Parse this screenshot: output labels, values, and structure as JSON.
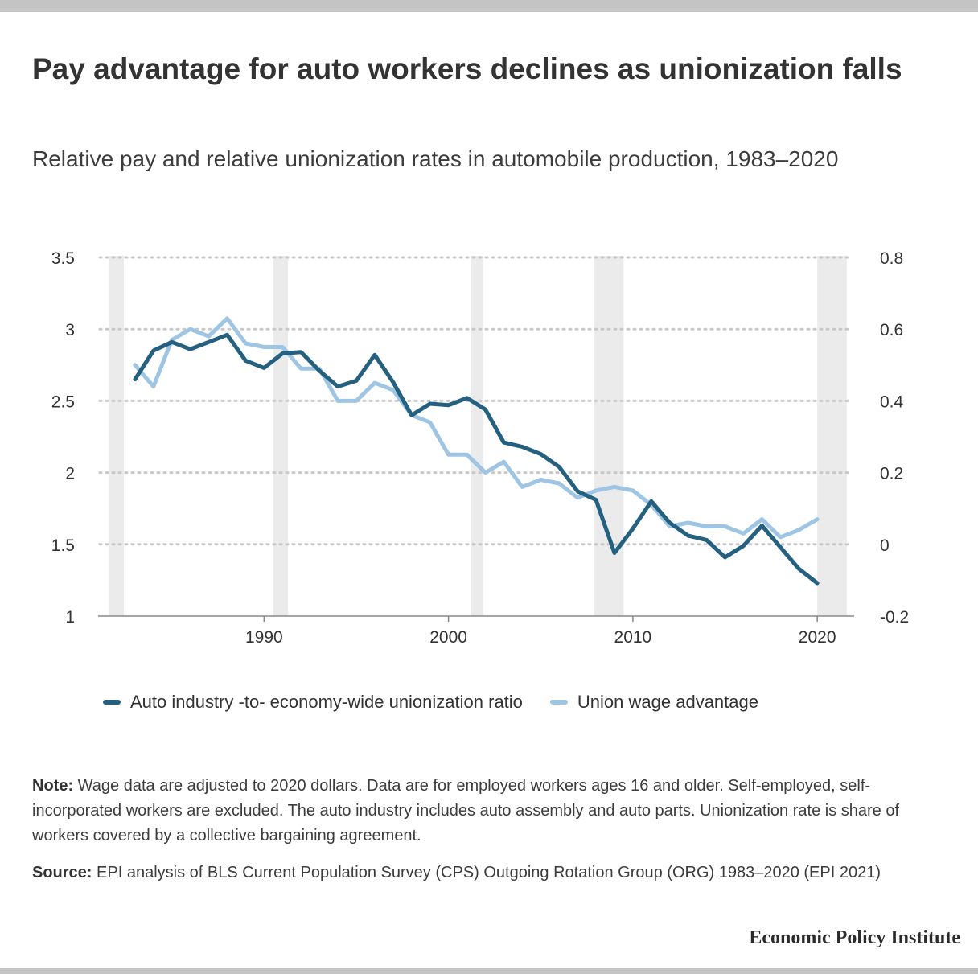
{
  "title": "Pay advantage for auto workers declines as unionization falls",
  "subtitle": "Relative pay and relative unionization rates in automobile production, 1983–2020",
  "note_label": "Note:",
  "note_text": "Wage data are adjusted to 2020 dollars. Data are for employed workers ages 16 and older. Self-employed, self-incorporated workers are excluded. The auto industry includes auto assembly and auto parts. Unionization rate is share of workers covered by a collective bargaining agreement.",
  "source_label": "Source:",
  "source_text": "EPI analysis of BLS Current Population Survey (CPS) Outgoing Rotation Group (ORG) 1983–2020 (EPI 2021)",
  "brand": "Economic Policy Institute",
  "chart_data": {
    "type": "line",
    "x": [
      1983,
      1984,
      1985,
      1986,
      1987,
      1988,
      1989,
      1990,
      1991,
      1992,
      1993,
      1994,
      1995,
      1996,
      1997,
      1998,
      1999,
      2000,
      2001,
      2002,
      2003,
      2004,
      2005,
      2006,
      2007,
      2008,
      2009,
      2010,
      2011,
      2012,
      2013,
      2014,
      2015,
      2016,
      2017,
      2018,
      2019,
      2020
    ],
    "xticks": [
      1990,
      2000,
      2010,
      2020
    ],
    "xlim": [
      1981,
      2022
    ],
    "y_left": {
      "lim": [
        1,
        3.5
      ],
      "ticks": [
        "1",
        "1.5",
        "2",
        "2.5",
        "3",
        "3.5"
      ]
    },
    "y_right": {
      "lim": [
        -0.2,
        0.8
      ],
      "ticks": [
        "-0.2",
        "0",
        "0.2",
        "0.4",
        "0.6",
        "0.8"
      ]
    },
    "grid": true,
    "recessions": [
      [
        1981.6,
        1982.4
      ],
      [
        1990.5,
        1991.3
      ],
      [
        2001.2,
        2001.9
      ],
      [
        2007.9,
        2009.5
      ],
      [
        2020.0,
        2021.6
      ]
    ],
    "series": [
      {
        "name": "Auto industry -to- economy-wide unionization ratio",
        "axis": "left",
        "color": "#24607f",
        "values": [
          2.65,
          2.85,
          2.91,
          2.86,
          2.91,
          2.96,
          2.78,
          2.73,
          2.83,
          2.84,
          2.71,
          2.6,
          2.64,
          2.82,
          2.63,
          2.4,
          2.48,
          2.47,
          2.52,
          2.44,
          2.21,
          2.18,
          2.13,
          2.04,
          1.87,
          1.81,
          1.44,
          1.61,
          1.8,
          1.65,
          1.56,
          1.53,
          1.41,
          1.49,
          1.63,
          1.48,
          1.33,
          1.23
        ]
      },
      {
        "name": "Union wage advantage",
        "axis": "right",
        "color": "#9fc5e4",
        "values": [
          0.5,
          0.44,
          0.57,
          0.6,
          0.58,
          0.63,
          0.56,
          0.55,
          0.55,
          0.49,
          0.49,
          0.4,
          0.4,
          0.45,
          0.43,
          0.36,
          0.34,
          0.25,
          0.25,
          0.2,
          0.23,
          0.16,
          0.18,
          0.17,
          0.13,
          0.15,
          0.16,
          0.15,
          0.11,
          0.05,
          0.06,
          0.05,
          0.05,
          0.03,
          0.07,
          0.02,
          0.04,
          0.07
        ]
      }
    ]
  }
}
